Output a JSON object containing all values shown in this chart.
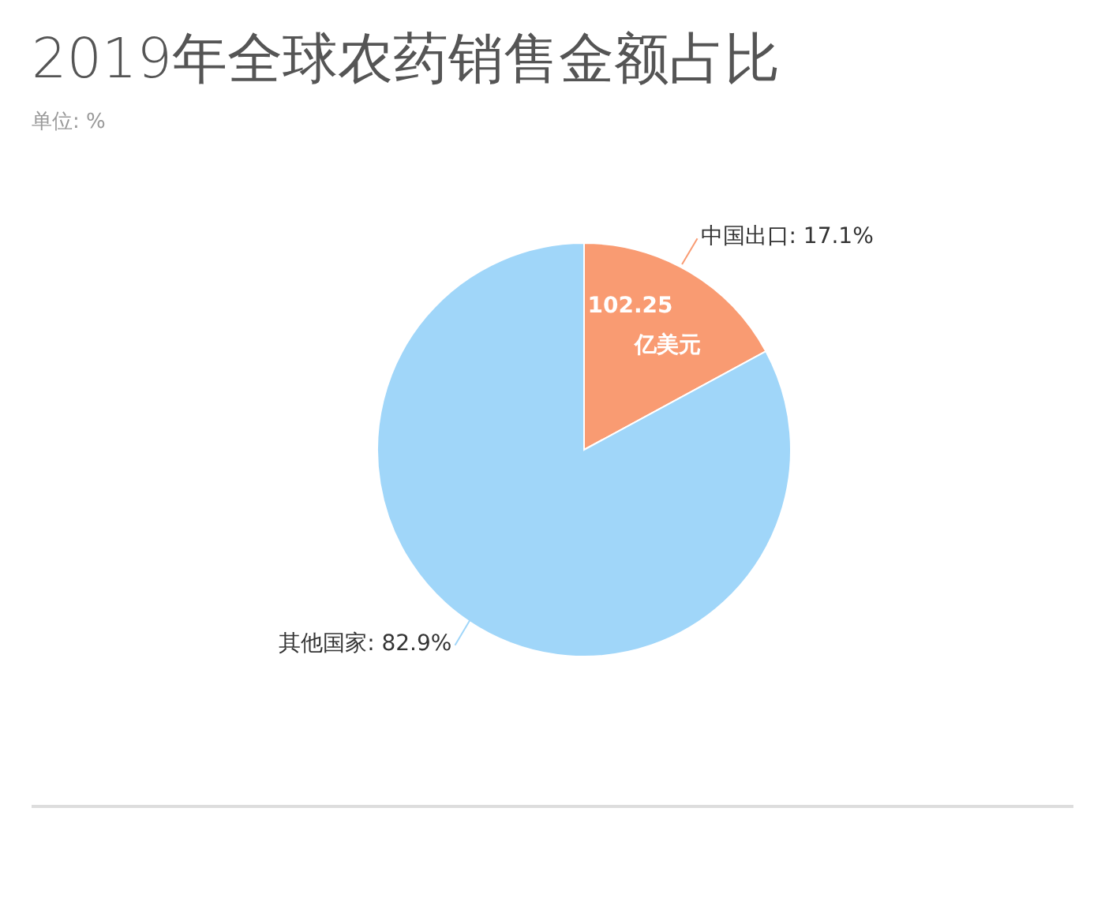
{
  "chart_data": {
    "type": "pie",
    "title": "2019年全球农药销售金额占比",
    "subtitle": "单位: %",
    "categories": [
      "中国出口",
      "其他国家"
    ],
    "values": [
      17.1,
      82.9
    ],
    "colors": [
      "#f99b72",
      "#a0d6f9"
    ],
    "value_labels": [
      "17.1%",
      "82.9%"
    ],
    "annotations": [
      "102.25 亿美元"
    ]
  }
}
